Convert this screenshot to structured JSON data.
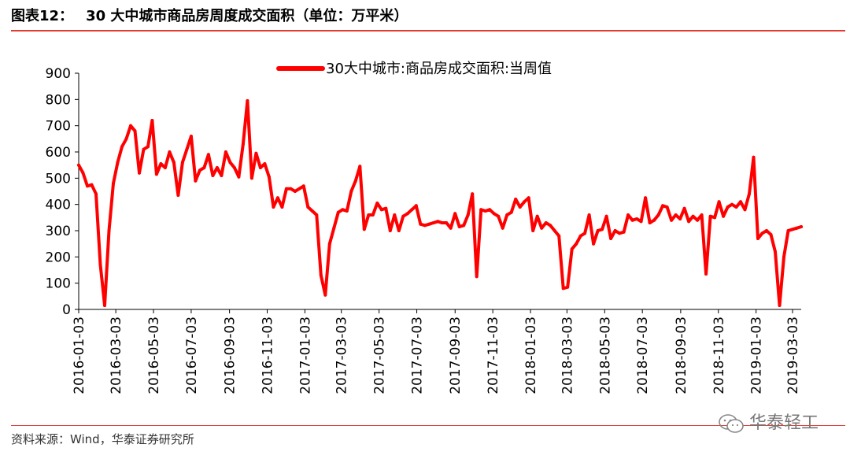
{
  "header": {
    "title_label": "图表12：",
    "title_text": "30 大中城市商品房周度成交面积（单位：万平米）"
  },
  "source_text": "资料来源：Wind，华泰证券研究所",
  "watermark_text": "华泰轻工",
  "colors": {
    "line": "#ff0000",
    "rule": "#e03c31"
  },
  "chart_data": {
    "type": "line",
    "title": "",
    "xlabel": "",
    "ylabel": "",
    "ylim": [
      0,
      900
    ],
    "yticks": [
      0,
      100,
      200,
      300,
      400,
      500,
      600,
      700,
      800,
      900
    ],
    "xlim": [
      "2016-01-03",
      "2019-03-17"
    ],
    "xticks": [
      "2016-01-03",
      "2016-03-03",
      "2016-05-03",
      "2016-07-03",
      "2016-09-03",
      "2016-11-03",
      "2017-01-03",
      "2017-03-03",
      "2017-05-03",
      "2017-07-03",
      "2017-09-03",
      "2017-11-03",
      "2018-01-03",
      "2018-03-03",
      "2018-05-03",
      "2018-07-03",
      "2018-09-03",
      "2018-11-03",
      "2019-01-03",
      "2019-03-03"
    ],
    "legend": {
      "position": "top-center"
    },
    "grid": false,
    "series": [
      {
        "name": "30大中城市:商品房成交面积:当周值",
        "color": "#ff0000",
        "points": [
          [
            "2016-01-03",
            550
          ],
          [
            "2016-01-10",
            520
          ],
          [
            "2016-01-17",
            470
          ],
          [
            "2016-01-24",
            475
          ],
          [
            "2016-01-31",
            440
          ],
          [
            "2016-02-07",
            170
          ],
          [
            "2016-02-14",
            15
          ],
          [
            "2016-02-21",
            300
          ],
          [
            "2016-02-28",
            480
          ],
          [
            "2016-03-06",
            560
          ],
          [
            "2016-03-13",
            620
          ],
          [
            "2016-03-20",
            650
          ],
          [
            "2016-03-27",
            700
          ],
          [
            "2016-04-03",
            680
          ],
          [
            "2016-04-10",
            520
          ],
          [
            "2016-04-17",
            610
          ],
          [
            "2016-04-24",
            620
          ],
          [
            "2016-05-01",
            720
          ],
          [
            "2016-05-08",
            515
          ],
          [
            "2016-05-15",
            555
          ],
          [
            "2016-05-22",
            540
          ],
          [
            "2016-05-29",
            600
          ],
          [
            "2016-06-05",
            560
          ],
          [
            "2016-06-12",
            435
          ],
          [
            "2016-06-19",
            560
          ],
          [
            "2016-06-26",
            610
          ],
          [
            "2016-07-03",
            660
          ],
          [
            "2016-07-10",
            490
          ],
          [
            "2016-07-17",
            530
          ],
          [
            "2016-07-24",
            540
          ],
          [
            "2016-07-31",
            590
          ],
          [
            "2016-08-07",
            510
          ],
          [
            "2016-08-14",
            540
          ],
          [
            "2016-08-21",
            510
          ],
          [
            "2016-08-28",
            600
          ],
          [
            "2016-09-04",
            560
          ],
          [
            "2016-09-11",
            540
          ],
          [
            "2016-09-18",
            505
          ],
          [
            "2016-09-25",
            630
          ],
          [
            "2016-10-02",
            795
          ],
          [
            "2016-10-09",
            500
          ],
          [
            "2016-10-16",
            595
          ],
          [
            "2016-10-23",
            540
          ],
          [
            "2016-10-30",
            555
          ],
          [
            "2016-11-06",
            505
          ],
          [
            "2016-11-13",
            390
          ],
          [
            "2016-11-20",
            425
          ],
          [
            "2016-11-27",
            390
          ],
          [
            "2016-12-04",
            460
          ],
          [
            "2016-12-11",
            460
          ],
          [
            "2016-12-18",
            450
          ],
          [
            "2016-12-25",
            460
          ],
          [
            "2017-01-01",
            470
          ],
          [
            "2017-01-08",
            390
          ],
          [
            "2017-01-15",
            375
          ],
          [
            "2017-01-22",
            360
          ],
          [
            "2017-01-29",
            130
          ],
          [
            "2017-02-05",
            55
          ],
          [
            "2017-02-12",
            250
          ],
          [
            "2017-02-19",
            310
          ],
          [
            "2017-02-26",
            370
          ],
          [
            "2017-03-05",
            380
          ],
          [
            "2017-03-12",
            375
          ],
          [
            "2017-03-19",
            450
          ],
          [
            "2017-03-26",
            490
          ],
          [
            "2017-04-02",
            545
          ],
          [
            "2017-04-09",
            305
          ],
          [
            "2017-04-16",
            360
          ],
          [
            "2017-04-23",
            360
          ],
          [
            "2017-04-30",
            405
          ],
          [
            "2017-05-07",
            380
          ],
          [
            "2017-05-14",
            385
          ],
          [
            "2017-05-21",
            300
          ],
          [
            "2017-05-28",
            360
          ],
          [
            "2017-06-04",
            300
          ],
          [
            "2017-06-11",
            355
          ],
          [
            "2017-06-18",
            365
          ],
          [
            "2017-06-25",
            380
          ],
          [
            "2017-07-02",
            395
          ],
          [
            "2017-07-09",
            325
          ],
          [
            "2017-07-16",
            320
          ],
          [
            "2017-07-23",
            325
          ],
          [
            "2017-07-30",
            330
          ],
          [
            "2017-08-06",
            335
          ],
          [
            "2017-08-13",
            330
          ],
          [
            "2017-08-20",
            330
          ],
          [
            "2017-08-27",
            310
          ],
          [
            "2017-09-03",
            365
          ],
          [
            "2017-09-10",
            315
          ],
          [
            "2017-09-17",
            320
          ],
          [
            "2017-09-24",
            360
          ],
          [
            "2017-10-01",
            440
          ],
          [
            "2017-10-08",
            125
          ],
          [
            "2017-10-15",
            380
          ],
          [
            "2017-10-22",
            375
          ],
          [
            "2017-10-29",
            380
          ],
          [
            "2017-11-05",
            365
          ],
          [
            "2017-11-12",
            355
          ],
          [
            "2017-11-19",
            310
          ],
          [
            "2017-11-26",
            360
          ],
          [
            "2017-12-03",
            370
          ],
          [
            "2017-12-10",
            420
          ],
          [
            "2017-12-17",
            390
          ],
          [
            "2017-12-24",
            410
          ],
          [
            "2017-12-31",
            425
          ],
          [
            "2018-01-07",
            300
          ],
          [
            "2018-01-14",
            355
          ],
          [
            "2018-01-21",
            310
          ],
          [
            "2018-01-28",
            330
          ],
          [
            "2018-02-04",
            320
          ],
          [
            "2018-02-11",
            300
          ],
          [
            "2018-02-18",
            280
          ],
          [
            "2018-02-25",
            80
          ],
          [
            "2018-03-04",
            85
          ],
          [
            "2018-03-11",
            230
          ],
          [
            "2018-03-18",
            250
          ],
          [
            "2018-03-25",
            280
          ],
          [
            "2018-04-01",
            290
          ],
          [
            "2018-04-08",
            360
          ],
          [
            "2018-04-15",
            250
          ],
          [
            "2018-04-22",
            300
          ],
          [
            "2018-04-29",
            305
          ],
          [
            "2018-05-06",
            355
          ],
          [
            "2018-05-13",
            270
          ],
          [
            "2018-05-20",
            300
          ],
          [
            "2018-05-27",
            290
          ],
          [
            "2018-06-03",
            295
          ],
          [
            "2018-06-10",
            360
          ],
          [
            "2018-06-17",
            340
          ],
          [
            "2018-06-24",
            345
          ],
          [
            "2018-07-01",
            335
          ],
          [
            "2018-07-08",
            425
          ],
          [
            "2018-07-15",
            330
          ],
          [
            "2018-07-22",
            340
          ],
          [
            "2018-07-29",
            360
          ],
          [
            "2018-08-05",
            395
          ],
          [
            "2018-08-12",
            390
          ],
          [
            "2018-08-19",
            340
          ],
          [
            "2018-08-26",
            360
          ],
          [
            "2018-09-02",
            345
          ],
          [
            "2018-09-09",
            385
          ],
          [
            "2018-09-16",
            335
          ],
          [
            "2018-09-23",
            355
          ],
          [
            "2018-09-30",
            340
          ],
          [
            "2018-10-07",
            360
          ],
          [
            "2018-10-14",
            135
          ],
          [
            "2018-10-21",
            355
          ],
          [
            "2018-10-28",
            350
          ],
          [
            "2018-11-04",
            410
          ],
          [
            "2018-11-11",
            355
          ],
          [
            "2018-11-18",
            390
          ],
          [
            "2018-11-25",
            400
          ],
          [
            "2018-12-02",
            390
          ],
          [
            "2018-12-09",
            410
          ],
          [
            "2018-12-16",
            380
          ],
          [
            "2018-12-23",
            440
          ],
          [
            "2018-12-30",
            580
          ],
          [
            "2019-01-06",
            270
          ],
          [
            "2019-01-13",
            290
          ],
          [
            "2019-01-20",
            300
          ],
          [
            "2019-01-27",
            285
          ],
          [
            "2019-02-03",
            220
          ],
          [
            "2019-02-10",
            15
          ],
          [
            "2019-02-17",
            200
          ],
          [
            "2019-02-24",
            300
          ],
          [
            "2019-03-03",
            305
          ],
          [
            "2019-03-10",
            310
          ],
          [
            "2019-03-17",
            315
          ]
        ]
      }
    ]
  }
}
